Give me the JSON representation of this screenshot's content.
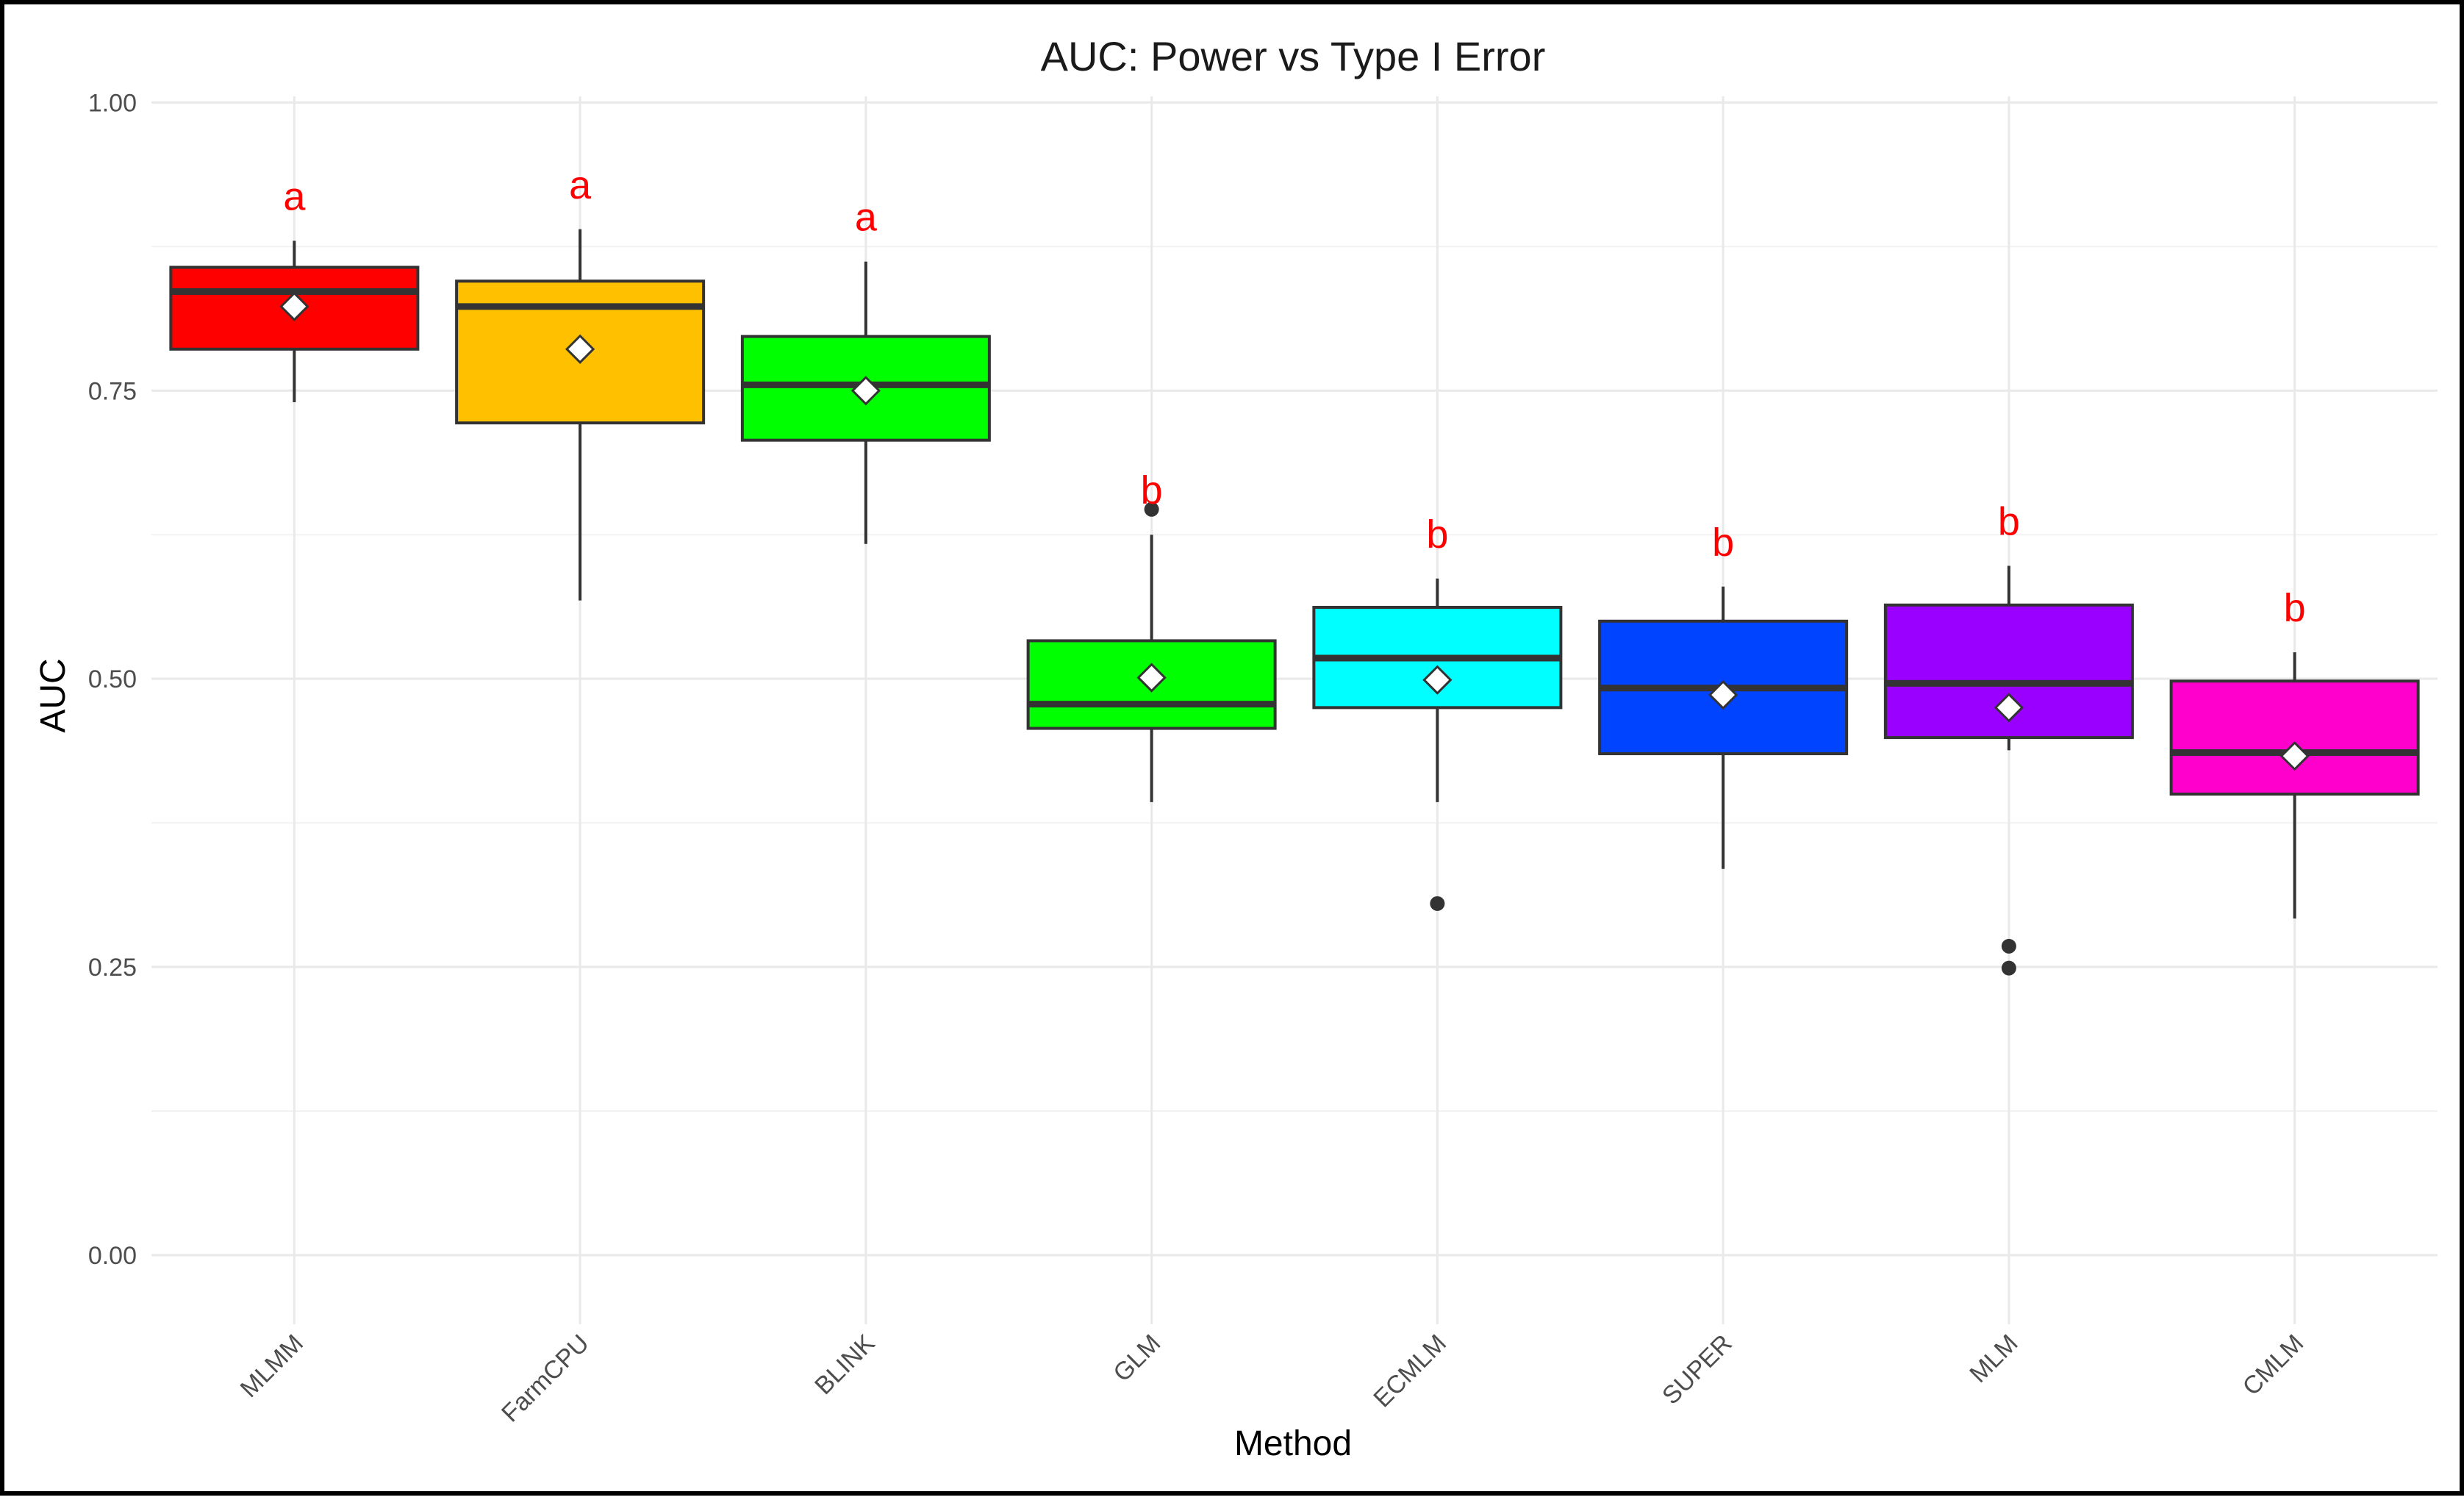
{
  "chart_data": {
    "type": "box",
    "title": "AUC: Power vs Type I Error",
    "xlabel": "Method",
    "ylabel": "AUC",
    "ylim": [
      -0.06,
      1.05
    ],
    "yticks": [
      0.0,
      0.25,
      0.5,
      0.75,
      1.0
    ],
    "ytick_labels": [
      "0.00",
      "0.25",
      "0.50",
      "0.75",
      "1.00"
    ],
    "grid": true,
    "categories": [
      "MLMM",
      "FarmCPU",
      "BLINK",
      "GLM",
      "ECMLM",
      "SUPER",
      "MLM",
      "CMLM"
    ],
    "series": [
      {
        "category": "MLMM",
        "color": "#ff0000",
        "whisker_low": 0.74,
        "q1": 0.786,
        "median": 0.836,
        "q3": 0.857,
        "whisker_high": 0.88,
        "mean": 0.823,
        "outliers": [],
        "group": "a"
      },
      {
        "category": "FarmCPU",
        "color": "#ffc000",
        "whisker_low": 0.568,
        "q1": 0.722,
        "median": 0.823,
        "q3": 0.845,
        "whisker_high": 0.89,
        "mean": 0.786,
        "outliers": [],
        "group": "a"
      },
      {
        "category": "BLINK",
        "color": "#00ff00",
        "whisker_low": 0.617,
        "q1": 0.707,
        "median": 0.755,
        "q3": 0.797,
        "whisker_high": 0.862,
        "mean": 0.75,
        "outliers": [],
        "group": "a"
      },
      {
        "category": "GLM",
        "color": "#00ff00",
        "whisker_low": 0.393,
        "q1": 0.457,
        "median": 0.478,
        "q3": 0.533,
        "whisker_high": 0.625,
        "mean": 0.501,
        "outliers": [
          0.647
        ],
        "group": "b"
      },
      {
        "category": "ECMLM",
        "color": "#00ffff",
        "whisker_low": 0.393,
        "q1": 0.475,
        "median": 0.518,
        "q3": 0.562,
        "whisker_high": 0.587,
        "mean": 0.499,
        "outliers": [
          0.305
        ],
        "group": "b"
      },
      {
        "category": "SUPER",
        "color": "#0044ff",
        "whisker_low": 0.335,
        "q1": 0.435,
        "median": 0.492,
        "q3": 0.55,
        "whisker_high": 0.58,
        "mean": 0.486,
        "outliers": [],
        "group": "b"
      },
      {
        "category": "MLM",
        "color": "#9900ff",
        "whisker_low": 0.438,
        "q1": 0.449,
        "median": 0.496,
        "q3": 0.564,
        "whisker_high": 0.598,
        "mean": 0.475,
        "outliers": [
          0.268,
          0.249
        ],
        "group": "b"
      },
      {
        "category": "CMLM",
        "color": "#ff00cc",
        "whisker_low": 0.292,
        "q1": 0.4,
        "median": 0.436,
        "q3": 0.498,
        "whisker_high": 0.523,
        "mean": 0.433,
        "outliers": [],
        "group": "b"
      }
    ]
  }
}
